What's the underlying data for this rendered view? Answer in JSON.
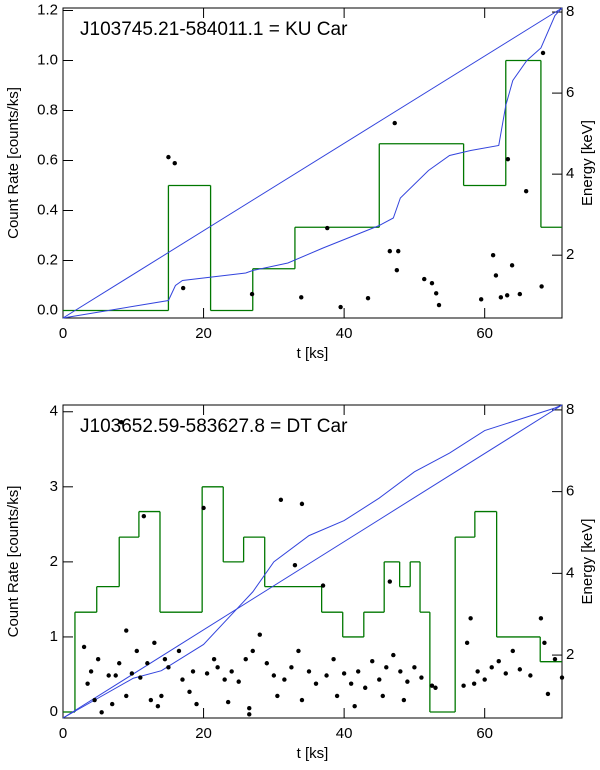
{
  "chart_data": [
    {
      "type": "combo",
      "title": "J103745.21-584011.1  =  KU Car",
      "x_label": "t [ks]",
      "y_label": "Count Rate [counts/ks]",
      "y2_label": "Energy [keV]",
      "xlim": [
        0,
        71
      ],
      "ylim": [
        -0.03,
        1.21
      ],
      "y2lim": [
        0.45,
        8.1
      ],
      "xticks": [
        0,
        20,
        40,
        60
      ],
      "yticks": [
        {
          "value": 0,
          "label": "0.0"
        },
        0.2,
        0.4,
        0.6,
        0.8,
        {
          "value": 1,
          "label": "1.0"
        },
        1.2
      ],
      "y2ticks": [
        2,
        4,
        6,
        8
      ],
      "series": [
        {
          "type": "step",
          "color": "#007700",
          "bins": [
            0,
            15,
            21,
            27,
            33,
            45,
            57,
            63,
            68,
            71
          ],
          "values": [
            0,
            0.5,
            0,
            0.167,
            0.333,
            0.667,
            0.5,
            1.0,
            0.333
          ]
        },
        {
          "type": "line",
          "color": "#3344dd",
          "x": [
            0,
            71
          ],
          "values": [
            -0.03,
            1.21
          ]
        },
        {
          "type": "line",
          "color": "#3344dd",
          "x": [
            0,
            15,
            16,
            17,
            26,
            27,
            32,
            37,
            45,
            47,
            48,
            52,
            55,
            58,
            62,
            63,
            64,
            66,
            68,
            70,
            71
          ],
          "values": [
            -0.03,
            0.04,
            0.1,
            0.12,
            0.15,
            0.16,
            0.19,
            0.25,
            0.34,
            0.37,
            0.45,
            0.56,
            0.62,
            0.64,
            0.66,
            0.82,
            0.92,
            1.0,
            1.05,
            1.18,
            1.21
          ]
        },
        {
          "type": "scatter",
          "color": "#000000",
          "axis": "y2",
          "x": [
            15,
            15.9,
            17.1,
            26.9,
            33.9,
            37.6,
            39.5,
            43.4,
            46.5,
            47.2,
            47.5,
            47.7,
            51.4,
            52.5,
            53.1,
            53.5,
            59.5,
            61.2,
            61.6,
            62.3,
            63.2,
            63.3,
            63.9,
            65,
            65.9,
            68.1,
            68.3
          ],
          "values": [
            4.42,
            4.27,
            1.19,
            1.04,
            0.96,
            2.67,
            0.72,
            0.94,
            2.1,
            5.26,
            1.63,
            2.1,
            1.41,
            1.31,
            1.06,
            0.77,
            0.91,
            2.0,
            1.5,
            0.96,
            1.01,
            4.37,
            1.75,
            1.04,
            3.58,
            1.23,
            6.99
          ]
        }
      ]
    },
    {
      "type": "combo",
      "title": "J103652.59-583627.8  =  DT Car",
      "x_label": "t [ks]",
      "y_label": "Count Rate [counts/ks]",
      "y2_label": "Energy [keV]",
      "xlim": [
        0,
        71
      ],
      "ylim": [
        -0.08,
        4.09
      ],
      "y2lim": [
        0.46,
        8.12
      ],
      "xticks": [
        0,
        20,
        40,
        60
      ],
      "yticks": [
        0,
        1,
        2,
        3,
        4
      ],
      "y2ticks": [
        2,
        4,
        6,
        8
      ],
      "series": [
        {
          "type": "step",
          "color": "#007700",
          "bins": [
            0,
            1.7,
            4.8,
            8.0,
            10.8,
            13.8,
            19.8,
            22.8,
            25.7,
            28.7,
            36.8,
            39.8,
            42.8,
            45.7,
            47.9,
            49.4,
            50.8,
            52.2,
            55.8,
            58.6,
            61.7,
            67.9,
            71
          ],
          "values": [
            0,
            1.33,
            1.67,
            2.33,
            2.67,
            1.33,
            3.0,
            2.0,
            2.33,
            1.67,
            1.33,
            1.0,
            1.33,
            2.0,
            1.67,
            2.0,
            1.33,
            0,
            2.33,
            2.67,
            1.0,
            0.67
          ]
        },
        {
          "type": "line",
          "color": "#3344dd",
          "x": [
            0,
            71
          ],
          "values": [
            -0.08,
            4.09
          ]
        },
        {
          "type": "line",
          "color": "#3344dd",
          "x": [
            0,
            10,
            14,
            20,
            25,
            27,
            30,
            35,
            40,
            45,
            50,
            55,
            60,
            65,
            70,
            71
          ],
          "values": [
            -0.08,
            0.45,
            0.55,
            0.9,
            1.4,
            1.6,
            2.0,
            2.35,
            2.55,
            2.85,
            3.2,
            3.45,
            3.75,
            3.9,
            4.05,
            4.09
          ]
        },
        {
          "type": "scatter",
          "color": "#000000",
          "axis": "y2",
          "x": [
            8.3,
            11.5,
            20,
            34,
            31,
            37,
            33,
            46.5,
            58,
            68,
            9,
            13,
            3,
            10.5,
            8,
            5,
            4,
            6.5,
            7.5,
            9.8,
            11,
            12,
            14.5,
            16.5,
            15,
            17,
            18.5,
            20.5,
            21.5,
            22,
            23,
            24,
            25,
            26,
            27,
            28,
            29,
            30,
            31.5,
            32.5,
            33.5,
            35,
            36,
            37.5,
            38.5,
            40,
            41,
            42,
            43,
            44,
            45,
            46,
            47,
            48,
            49,
            50,
            51,
            52.5,
            57,
            57.5,
            58.5,
            59,
            60,
            61,
            62,
            63,
            64,
            65,
            66.5,
            68.5,
            70,
            71,
            4.5,
            5.5,
            7,
            9,
            12.5,
            13.5,
            14,
            19,
            23.5,
            26.5,
            30.5,
            34,
            39,
            41.5,
            45.5,
            48.5,
            53,
            3.5,
            69,
            26.5,
            18
          ],
          "values": [
            7.7,
            5.4,
            5.6,
            5.7,
            5.8,
            3.7,
            4.2,
            3.8,
            2.9,
            2.9,
            2.6,
            2.3,
            2.2,
            2.1,
            1.8,
            1.9,
            1.6,
            1.5,
            1.5,
            1.55,
            1.45,
            1.8,
            1.9,
            2.1,
            1.7,
            1.4,
            1.6,
            1.55,
            1.9,
            1.7,
            1.4,
            1.6,
            1.35,
            1.9,
            2.1,
            2.5,
            1.8,
            1.5,
            1.4,
            1.7,
            2.1,
            1.6,
            1.3,
            1.5,
            1.9,
            1.55,
            1.3,
            1.6,
            1.2,
            1.85,
            1.4,
            1.7,
            2.0,
            1.6,
            1.35,
            1.7,
            1.45,
            1.25,
            1.25,
            2.3,
            1.3,
            1.6,
            1.4,
            1.7,
            1.85,
            1.55,
            2.1,
            1.65,
            1.5,
            2.3,
            1.9,
            1.45,
            0.9,
            0.6,
            0.8,
            1.0,
            0.9,
            0.75,
            1.0,
            0.8,
            0.85,
            0.7,
            1.0,
            0.9,
            1.0,
            0.75,
            1.0,
            0.9,
            1.2,
            1.3,
            1.05,
            0.55,
            1.1
          ]
        }
      ]
    }
  ]
}
